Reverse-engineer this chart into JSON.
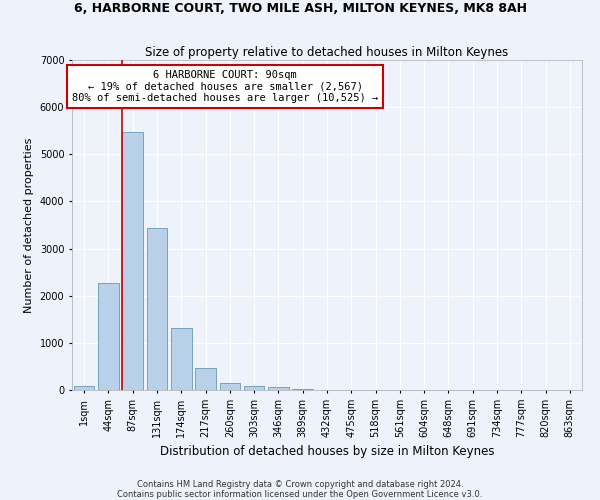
{
  "title": "6, HARBORNE COURT, TWO MILE ASH, MILTON KEYNES, MK8 8AH",
  "subtitle": "Size of property relative to detached houses in Milton Keynes",
  "xlabel": "Distribution of detached houses by size in Milton Keynes",
  "ylabel": "Number of detached properties",
  "footer_line1": "Contains HM Land Registry data © Crown copyright and database right 2024.",
  "footer_line2": "Contains public sector information licensed under the Open Government Licence v3.0.",
  "annotation_title": "6 HARBORNE COURT: 90sqm",
  "annotation_line1": "← 19% of detached houses are smaller (2,567)",
  "annotation_line2": "80% of semi-detached houses are larger (10,525) →",
  "bar_color": "#b8d0e8",
  "bar_edgecolor": "#6699bb",
  "redline_color": "#cc0000",
  "annotation_box_facecolor": "#ffffff",
  "annotation_box_edgecolor": "#cc0000",
  "background_color": "#eef2fa",
  "grid_color": "#ffffff",
  "categories": [
    "1sqm",
    "44sqm",
    "87sqm",
    "131sqm",
    "174sqm",
    "217sqm",
    "260sqm",
    "303sqm",
    "346sqm",
    "389sqm",
    "432sqm",
    "475sqm",
    "518sqm",
    "561sqm",
    "604sqm",
    "648sqm",
    "691sqm",
    "734sqm",
    "777sqm",
    "820sqm",
    "863sqm"
  ],
  "bar_values": [
    85,
    2280,
    5470,
    3440,
    1310,
    470,
    155,
    90,
    55,
    30,
    0,
    0,
    0,
    0,
    0,
    0,
    0,
    0,
    0,
    0,
    0
  ],
  "ylim": [
    0,
    7000
  ],
  "yticks": [
    0,
    1000,
    2000,
    3000,
    4000,
    5000,
    6000,
    7000
  ],
  "title_fontsize": 9,
  "subtitle_fontsize": 8.5,
  "ylabel_fontsize": 8,
  "xlabel_fontsize": 8.5,
  "tick_fontsize": 7,
  "footer_fontsize": 6,
  "annotation_fontsize": 7.5
}
